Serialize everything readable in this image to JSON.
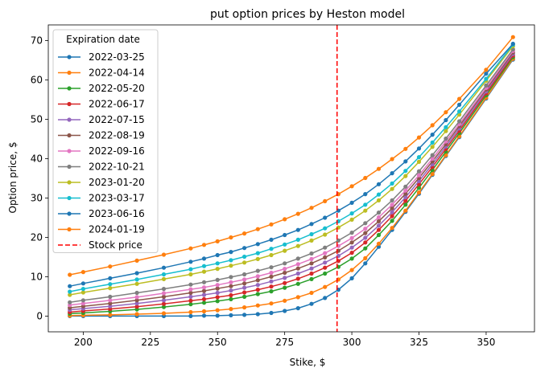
{
  "chart_data": {
    "type": "line",
    "title": "put option prices by Heston model",
    "xlabel": "Stike, $",
    "ylabel": "Option price, $",
    "xlim": [
      187,
      368
    ],
    "ylim": [
      -4,
      74
    ],
    "xticks": [
      200,
      225,
      250,
      275,
      300,
      325,
      350
    ],
    "yticks": [
      0,
      10,
      20,
      30,
      40,
      50,
      60,
      70
    ],
    "grid": false,
    "legend_title": "Expiration date",
    "legend_position": "top-left",
    "stock_price": {
      "x": 294.5,
      "label": "Stock price",
      "color": "#ff0000"
    },
    "x": [
      195,
      200,
      210,
      220,
      230,
      240,
      245,
      250,
      255,
      260,
      265,
      270,
      275,
      280,
      285,
      290,
      295,
      300,
      305,
      310,
      315,
      320,
      325,
      330,
      335,
      340,
      350,
      360
    ],
    "series": [
      {
        "name": "2022-03-25",
        "color": "#1f77b4",
        "values": [
          0.0,
          0.0,
          0.0,
          0.0,
          0.0,
          0.0,
          0.1,
          0.1,
          0.2,
          0.3,
          0.5,
          0.8,
          1.3,
          2.0,
          3.1,
          4.6,
          6.7,
          9.6,
          13.4,
          17.6,
          21.9,
          26.5,
          31.1,
          35.9,
          40.7,
          45.5,
          55.3,
          65.2
        ]
      },
      {
        "name": "2022-04-14",
        "color": "#ff7f0e",
        "values": [
          0.1,
          0.2,
          0.3,
          0.5,
          0.7,
          1.0,
          1.2,
          1.5,
          1.8,
          2.2,
          2.7,
          3.2,
          3.9,
          4.8,
          5.9,
          7.4,
          9.3,
          11.7,
          14.7,
          18.4,
          22.4,
          26.8,
          31.4,
          36.1,
          40.9,
          45.7,
          55.5,
          65.4
        ]
      },
      {
        "name": "2022-05-20",
        "color": "#2ca02c",
        "values": [
          0.6,
          0.8,
          1.2,
          1.7,
          2.3,
          3.0,
          3.4,
          3.8,
          4.3,
          4.9,
          5.6,
          6.3,
          7.2,
          8.2,
          9.4,
          10.8,
          12.5,
          14.6,
          17.2,
          20.6,
          24.2,
          28.3,
          32.6,
          37.1,
          41.8,
          46.5,
          56.1,
          65.8
        ]
      },
      {
        "name": "2022-06-17",
        "color": "#d62728",
        "values": [
          1.0,
          1.3,
          1.8,
          2.4,
          3.1,
          3.9,
          4.3,
          4.8,
          5.3,
          6.0,
          6.7,
          7.5,
          8.4,
          9.5,
          10.8,
          12.3,
          14.0,
          16.1,
          18.7,
          21.9,
          25.4,
          29.3,
          33.5,
          37.9,
          42.5,
          47.1,
          56.6,
          66.2
        ]
      },
      {
        "name": "2022-07-15",
        "color": "#9467bd",
        "values": [
          1.6,
          1.9,
          2.5,
          3.2,
          4.0,
          4.9,
          5.4,
          5.9,
          6.5,
          7.2,
          7.9,
          8.8,
          9.7,
          10.8,
          12.1,
          13.6,
          15.3,
          17.4,
          19.9,
          23.0,
          26.4,
          30.2,
          34.3,
          38.6,
          43.1,
          47.7,
          57.1,
          66.6
        ]
      },
      {
        "name": "2022-08-19",
        "color": "#8c564b",
        "values": [
          2.1,
          2.5,
          3.2,
          4.0,
          4.9,
          5.9,
          6.4,
          7.0,
          7.6,
          8.3,
          9.1,
          10.0,
          11.0,
          12.1,
          13.4,
          14.9,
          16.6,
          18.7,
          21.1,
          24.1,
          27.4,
          31.1,
          35.1,
          39.3,
          43.7,
          48.3,
          57.6,
          67.0
        ]
      },
      {
        "name": "2022-09-16",
        "color": "#e377c2",
        "values": [
          2.8,
          3.2,
          4.0,
          4.8,
          5.8,
          6.8,
          7.3,
          7.9,
          8.6,
          9.3,
          10.1,
          11.0,
          12.0,
          13.2,
          14.5,
          16.0,
          17.8,
          19.8,
          22.2,
          25.1,
          28.3,
          31.9,
          35.8,
          40.0,
          44.4,
          48.8,
          58.0,
          67.4
        ]
      },
      {
        "name": "2022-10-21",
        "color": "#7f7f7f",
        "values": [
          3.5,
          4.0,
          4.9,
          5.9,
          6.9,
          8.0,
          8.6,
          9.2,
          9.9,
          10.6,
          11.5,
          12.4,
          13.4,
          14.6,
          15.9,
          17.4,
          19.2,
          21.2,
          23.6,
          26.3,
          29.4,
          32.9,
          36.8,
          40.9,
          45.1,
          49.5,
          58.6,
          67.8
        ]
      },
      {
        "name": "2023-01-20",
        "color": "#bcbd22",
        "values": [
          5.4,
          6.0,
          7.1,
          8.2,
          9.4,
          10.6,
          11.3,
          12.0,
          12.8,
          13.6,
          14.5,
          15.5,
          16.6,
          17.8,
          19.2,
          20.7,
          22.5,
          24.5,
          26.8,
          29.4,
          32.3,
          35.6,
          39.2,
          43.0,
          47.0,
          51.2,
          59.8,
          68.6
        ]
      },
      {
        "name": "2023-03-17",
        "color": "#17becf",
        "values": [
          6.2,
          6.9,
          8.1,
          9.3,
          10.6,
          11.9,
          12.7,
          13.4,
          14.2,
          15.1,
          16.0,
          17.1,
          18.2,
          19.4,
          20.8,
          22.3,
          24.1,
          26.1,
          28.3,
          30.9,
          33.7,
          36.9,
          40.4,
          44.1,
          48.0,
          52.0,
          60.3,
          69.0
        ]
      },
      {
        "name": "2023-06-16",
        "color": "#1f77b4",
        "values": [
          7.6,
          8.3,
          9.6,
          10.9,
          12.3,
          13.8,
          14.6,
          15.5,
          16.3,
          17.3,
          18.3,
          19.4,
          20.6,
          21.9,
          23.4,
          25.0,
          26.8,
          28.8,
          31.0,
          33.5,
          36.3,
          39.3,
          42.6,
          46.1,
          49.8,
          53.7,
          61.6,
          69.2
        ]
      },
      {
        "name": "2024-01-19",
        "color": "#ff7f0e",
        "values": [
          10.5,
          11.2,
          12.6,
          14.1,
          15.6,
          17.2,
          18.1,
          19.0,
          20.0,
          21.0,
          22.1,
          23.3,
          24.6,
          26.0,
          27.5,
          29.2,
          31.0,
          33.0,
          35.1,
          37.4,
          39.9,
          42.5,
          45.4,
          48.5,
          51.8,
          55.2,
          62.6,
          70.9
        ]
      }
    ]
  }
}
